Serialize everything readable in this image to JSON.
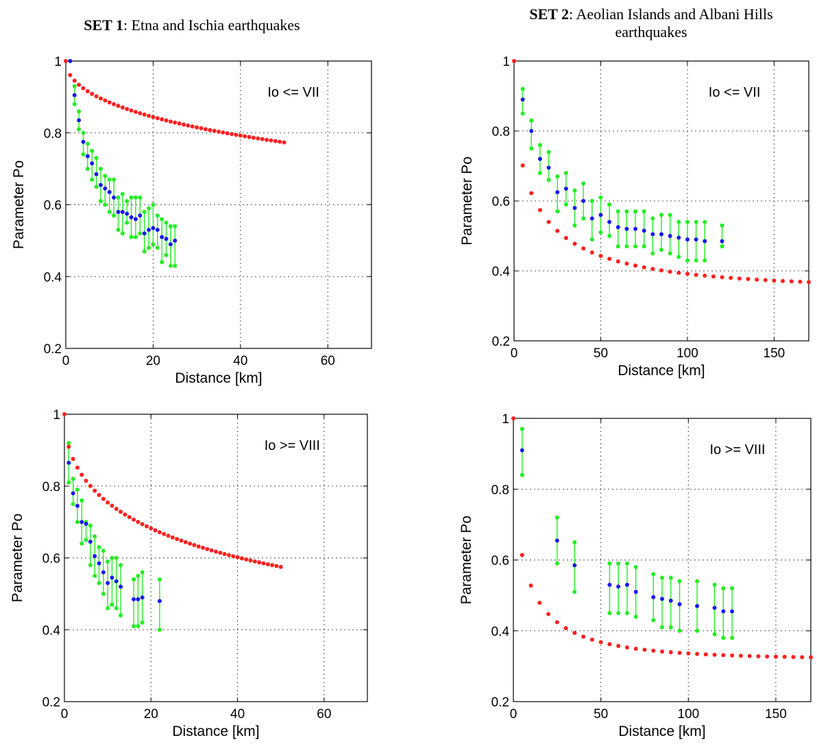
{
  "sets": [
    {
      "bold": "SET 1",
      "rest": ": Etna and Ischia earthquakes"
    },
    {
      "bold": "SET 2",
      "rest": ": Aeolian Islands and Albani Hills earthquakes"
    }
  ],
  "colors": {
    "model": "#ff2020",
    "mean": "#1a1aee",
    "range": "#22ee22",
    "grid": "#555555"
  },
  "chart_data": [
    {
      "type": "scatter",
      "annotation": "Io <= VII",
      "xlabel": "Distance [km]",
      "ylabel": "Parameter Po",
      "xlim": [
        0,
        70
      ],
      "ylim": [
        0.2,
        1
      ],
      "xticks": [
        0,
        20,
        40,
        60
      ],
      "yticks": [
        0.2,
        0.4,
        0.6,
        0.8,
        1
      ],
      "grid": true,
      "model": {
        "x_start": 0,
        "x_end": 50,
        "step": 1,
        "a": 0.14,
        "b": 0.95,
        "c": 0.42
      },
      "observed": [
        {
          "x": 1,
          "lo": 1.0,
          "hi": 1.0,
          "mean": 1.0
        },
        {
          "x": 2,
          "lo": 0.88,
          "hi": 0.93,
          "mean": 0.905
        },
        {
          "x": 3,
          "lo": 0.81,
          "hi": 0.86,
          "mean": 0.835
        },
        {
          "x": 4,
          "lo": 0.74,
          "hi": 0.8,
          "mean": 0.775
        },
        {
          "x": 5,
          "lo": 0.7,
          "hi": 0.77,
          "mean": 0.735
        },
        {
          "x": 6,
          "lo": 0.67,
          "hi": 0.75,
          "mean": 0.715
        },
        {
          "x": 7,
          "lo": 0.65,
          "hi": 0.73,
          "mean": 0.685
        },
        {
          "x": 8,
          "lo": 0.61,
          "hi": 0.7,
          "mean": 0.655
        },
        {
          "x": 9,
          "lo": 0.6,
          "hi": 0.68,
          "mean": 0.645
        },
        {
          "x": 10,
          "lo": 0.58,
          "hi": 0.67,
          "mean": 0.635
        },
        {
          "x": 11,
          "lo": 0.57,
          "hi": 0.67,
          "mean": 0.62
        },
        {
          "x": 12,
          "lo": 0.53,
          "hi": 0.62,
          "mean": 0.58
        },
        {
          "x": 13,
          "lo": 0.52,
          "hi": 0.63,
          "mean": 0.58
        },
        {
          "x": 14,
          "lo": 0.55,
          "hi": 0.61,
          "mean": 0.575
        },
        {
          "x": 15,
          "lo": 0.51,
          "hi": 0.62,
          "mean": 0.565
        },
        {
          "x": 16,
          "lo": 0.51,
          "hi": 0.62,
          "mean": 0.56
        },
        {
          "x": 17,
          "lo": 0.52,
          "hi": 0.62,
          "mean": 0.57
        },
        {
          "x": 18,
          "lo": 0.47,
          "hi": 0.58,
          "mean": 0.52
        },
        {
          "x": 19,
          "lo": 0.48,
          "hi": 0.59,
          "mean": 0.53
        },
        {
          "x": 20,
          "lo": 0.49,
          "hi": 0.6,
          "mean": 0.535
        },
        {
          "x": 21,
          "lo": 0.48,
          "hi": 0.57,
          "mean": 0.53
        },
        {
          "x": 22,
          "lo": 0.44,
          "hi": 0.56,
          "mean": 0.51
        },
        {
          "x": 23,
          "lo": 0.46,
          "hi": 0.55,
          "mean": 0.505
        },
        {
          "x": 24,
          "lo": 0.43,
          "hi": 0.54,
          "mean": 0.49
        },
        {
          "x": 25,
          "lo": 0.43,
          "hi": 0.54,
          "mean": 0.5
        }
      ]
    },
    {
      "type": "scatter",
      "annotation": "Io <= VII",
      "xlabel": "Distance [km]",
      "ylabel": "Parameter Po",
      "xlim": [
        0,
        170
      ],
      "ylim": [
        0.2,
        1
      ],
      "xticks": [
        0,
        50,
        100,
        150
      ],
      "yticks": [
        0.2,
        0.4,
        0.6,
        0.8,
        1
      ],
      "grid": true,
      "model": {
        "x_start": 0,
        "x_end": 170,
        "step": 5,
        "a": 0.55,
        "b": 0.9,
        "c": 0.35
      },
      "observed": [
        {
          "x": 5,
          "lo": 0.85,
          "hi": 0.92,
          "mean": 0.89
        },
        {
          "x": 10,
          "lo": 0.75,
          "hi": 0.83,
          "mean": 0.8
        },
        {
          "x": 15,
          "lo": 0.68,
          "hi": 0.76,
          "mean": 0.72
        },
        {
          "x": 20,
          "lo": 0.66,
          "hi": 0.74,
          "mean": 0.695
        },
        {
          "x": 25,
          "lo": 0.57,
          "hi": 0.67,
          "mean": 0.625
        },
        {
          "x": 30,
          "lo": 0.59,
          "hi": 0.68,
          "mean": 0.635
        },
        {
          "x": 35,
          "lo": 0.53,
          "hi": 0.63,
          "mean": 0.58
        },
        {
          "x": 40,
          "lo": 0.55,
          "hi": 0.65,
          "mean": 0.6
        },
        {
          "x": 45,
          "lo": 0.49,
          "hi": 0.6,
          "mean": 0.55
        },
        {
          "x": 50,
          "lo": 0.51,
          "hi": 0.61,
          "mean": 0.56
        },
        {
          "x": 55,
          "lo": 0.5,
          "hi": 0.59,
          "mean": 0.54
        },
        {
          "x": 60,
          "lo": 0.47,
          "hi": 0.57,
          "mean": 0.525
        },
        {
          "x": 65,
          "lo": 0.47,
          "hi": 0.57,
          "mean": 0.52
        },
        {
          "x": 70,
          "lo": 0.47,
          "hi": 0.57,
          "mean": 0.52
        },
        {
          "x": 75,
          "lo": 0.47,
          "hi": 0.57,
          "mean": 0.515
        },
        {
          "x": 80,
          "lo": 0.45,
          "hi": 0.55,
          "mean": 0.505
        },
        {
          "x": 85,
          "lo": 0.46,
          "hi": 0.56,
          "mean": 0.505
        },
        {
          "x": 90,
          "lo": 0.45,
          "hi": 0.56,
          "mean": 0.5
        },
        {
          "x": 95,
          "lo": 0.44,
          "hi": 0.54,
          "mean": 0.495
        },
        {
          "x": 100,
          "lo": 0.43,
          "hi": 0.54,
          "mean": 0.49
        },
        {
          "x": 105,
          "lo": 0.43,
          "hi": 0.54,
          "mean": 0.49
        },
        {
          "x": 110,
          "lo": 0.43,
          "hi": 0.54,
          "mean": 0.485
        },
        {
          "x": 120,
          "lo": 0.47,
          "hi": 0.53,
          "mean": 0.485
        }
      ]
    },
    {
      "type": "scatter",
      "annotation": "Io >= VIII",
      "xlabel": "Distance [km]",
      "ylabel": "Parameter Po",
      "xlim": [
        0,
        70
      ],
      "ylim": [
        0.2,
        1
      ],
      "xticks": [
        0,
        20,
        40,
        60
      ],
      "yticks": [
        0.2,
        0.4,
        0.6,
        0.8,
        1
      ],
      "grid": true,
      "model": {
        "x_start": 0,
        "x_end": 50,
        "step": 1,
        "a": 0.3,
        "b": 0.85,
        "c": 0.35
      },
      "observed": [
        {
          "x": 1,
          "lo": 0.81,
          "hi": 0.92,
          "mean": 0.865
        },
        {
          "x": 2,
          "lo": 0.75,
          "hi": 0.82,
          "mean": 0.78
        },
        {
          "x": 3,
          "lo": 0.7,
          "hi": 0.79,
          "mean": 0.745
        },
        {
          "x": 4,
          "lo": 0.64,
          "hi": 0.76,
          "mean": 0.7
        },
        {
          "x": 5,
          "lo": 0.65,
          "hi": 0.7,
          "mean": 0.695
        },
        {
          "x": 6,
          "lo": 0.58,
          "hi": 0.69,
          "mean": 0.645
        },
        {
          "x": 7,
          "lo": 0.55,
          "hi": 0.66,
          "mean": 0.605
        },
        {
          "x": 8,
          "lo": 0.53,
          "hi": 0.63,
          "mean": 0.585
        },
        {
          "x": 9,
          "lo": 0.5,
          "hi": 0.62,
          "mean": 0.56
        },
        {
          "x": 10,
          "lo": 0.46,
          "hi": 0.59,
          "mean": 0.53
        },
        {
          "x": 11,
          "lo": 0.47,
          "hi": 0.6,
          "mean": 0.545
        },
        {
          "x": 12,
          "lo": 0.46,
          "hi": 0.6,
          "mean": 0.535
        },
        {
          "x": 13,
          "lo": 0.44,
          "hi": 0.58,
          "mean": 0.52
        },
        {
          "x": 16,
          "lo": 0.41,
          "hi": 0.54,
          "mean": 0.485
        },
        {
          "x": 17,
          "lo": 0.41,
          "hi": 0.55,
          "mean": 0.485
        },
        {
          "x": 18,
          "lo": 0.42,
          "hi": 0.56,
          "mean": 0.49
        },
        {
          "x": 22,
          "lo": 0.4,
          "hi": 0.54,
          "mean": 0.48
        }
      ]
    },
    {
      "type": "scatter",
      "annotation": "Io >= VIII",
      "xlabel": "Distance [km]",
      "ylabel": "Parameter Po",
      "xlim": [
        0,
        170
      ],
      "ylim": [
        0.2,
        1
      ],
      "xticks": [
        0,
        50,
        100,
        150
      ],
      "yticks": [
        0.2,
        0.4,
        0.6,
        0.8,
        1
      ],
      "grid": true,
      "model": {
        "x_start": 0,
        "x_end": 170,
        "step": 5,
        "a": 0.75,
        "b": 0.85,
        "c": 0.32
      },
      "observed": [
        {
          "x": 5,
          "lo": 0.84,
          "hi": 0.97,
          "mean": 0.91
        },
        {
          "x": 25,
          "lo": 0.59,
          "hi": 0.72,
          "mean": 0.655
        },
        {
          "x": 35,
          "lo": 0.51,
          "hi": 0.65,
          "mean": 0.585
        },
        {
          "x": 55,
          "lo": 0.45,
          "hi": 0.59,
          "mean": 0.53
        },
        {
          "x": 60,
          "lo": 0.45,
          "hi": 0.59,
          "mean": 0.525
        },
        {
          "x": 65,
          "lo": 0.45,
          "hi": 0.59,
          "mean": 0.53
        },
        {
          "x": 70,
          "lo": 0.44,
          "hi": 0.58,
          "mean": 0.51
        },
        {
          "x": 80,
          "lo": 0.43,
          "hi": 0.56,
          "mean": 0.495
        },
        {
          "x": 85,
          "lo": 0.41,
          "hi": 0.55,
          "mean": 0.49
        },
        {
          "x": 90,
          "lo": 0.41,
          "hi": 0.55,
          "mean": 0.485
        },
        {
          "x": 95,
          "lo": 0.4,
          "hi": 0.54,
          "mean": 0.475
        },
        {
          "x": 105,
          "lo": 0.4,
          "hi": 0.54,
          "mean": 0.47
        },
        {
          "x": 115,
          "lo": 0.39,
          "hi": 0.53,
          "mean": 0.465
        },
        {
          "x": 120,
          "lo": 0.38,
          "hi": 0.52,
          "mean": 0.455
        },
        {
          "x": 125,
          "lo": 0.38,
          "hi": 0.52,
          "mean": 0.455
        }
      ]
    }
  ]
}
